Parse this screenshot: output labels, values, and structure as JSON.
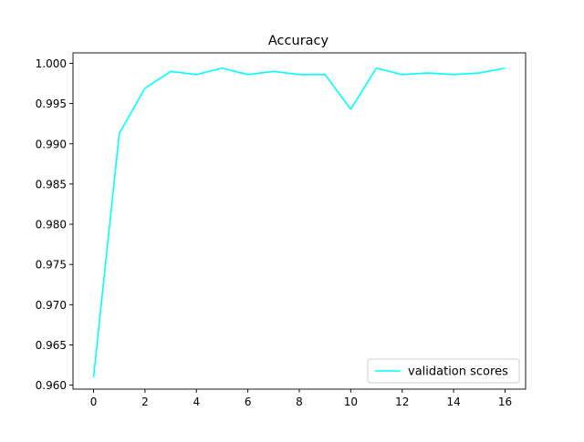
{
  "chart_data": {
    "type": "line",
    "title": "Accuracy",
    "xlabel": "",
    "ylabel": "",
    "xlim": [
      -0.8,
      16.8
    ],
    "ylim": [
      0.9595,
      1.0013
    ],
    "xticks": [
      0,
      2,
      4,
      6,
      8,
      10,
      12,
      14,
      16
    ],
    "yticks": [
      0.96,
      0.965,
      0.97,
      0.975,
      0.98,
      0.985,
      0.99,
      0.995,
      1.0
    ],
    "x": [
      0,
      1,
      2,
      3,
      4,
      5,
      6,
      7,
      8,
      9,
      10,
      11,
      12,
      13,
      14,
      15,
      16
    ],
    "series": [
      {
        "name": "validation scores",
        "color": "#00ffff",
        "values": [
          0.961,
          0.9913,
          0.9969,
          0.999,
          0.9986,
          0.9994,
          0.9986,
          0.999,
          0.9986,
          0.9986,
          0.9943,
          0.9994,
          0.9986,
          0.9988,
          0.9986,
          0.9988,
          0.9994
        ]
      }
    ],
    "grid": false,
    "legend": "lower right"
  }
}
